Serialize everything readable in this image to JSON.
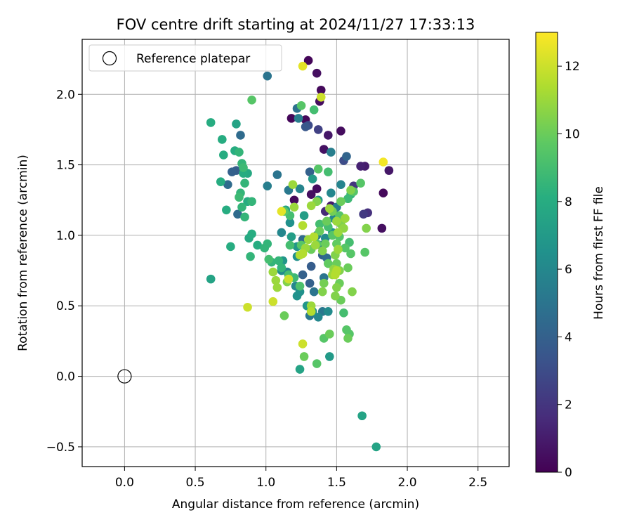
{
  "chart_data": {
    "type": "scatter",
    "title": "FOV centre drift starting at 2024/11/27 17:33:13",
    "xlabel": "Angular distance from reference (arcmin)",
    "ylabel": "Rotation from reference (arcmin)",
    "xlim": [
      -0.3,
      2.72
    ],
    "ylim": [
      -0.64,
      2.39
    ],
    "grid": true,
    "legend": {
      "position": "top-left",
      "entries": [
        "Reference platepar"
      ]
    },
    "x_ticks": [
      "0.0",
      "0.5",
      "1.0",
      "1.5",
      "2.0",
      "2.5"
    ],
    "y_ticks": [
      "−0.5",
      "0.0",
      "0.5",
      "1.0",
      "1.5",
      "2.0"
    ],
    "colorbar": {
      "label": "Hours from first FF file",
      "range": [
        0,
        13
      ],
      "ticks": [
        "0",
        "2",
        "4",
        "6",
        "8",
        "10",
        "12"
      ],
      "colormap": "viridis"
    },
    "reference_point": {
      "x": 0.0,
      "y": 0.0,
      "label": "Reference platepar"
    },
    "points": [
      [
        1.3,
        2.24,
        0.2
      ],
      [
        1.36,
        2.15,
        0.5
      ],
      [
        1.39,
        2.03,
        0.3
      ],
      [
        1.38,
        1.95,
        0.4
      ],
      [
        1.28,
        1.82,
        0.3
      ],
      [
        1.18,
        1.83,
        0.2
      ],
      [
        1.53,
        1.74,
        0.4
      ],
      [
        1.44,
        1.71,
        0.8
      ],
      [
        1.41,
        1.61,
        0.6
      ],
      [
        1.67,
        1.49,
        1.2
      ],
      [
        1.7,
        1.49,
        1.0
      ],
      [
        1.87,
        1.46,
        0.8
      ],
      [
        1.82,
        1.05,
        0.5
      ],
      [
        1.83,
        1.3,
        0.3
      ],
      [
        1.72,
        1.16,
        1.8
      ],
      [
        1.69,
        1.15,
        2.2
      ],
      [
        1.62,
        1.35,
        2.0
      ],
      [
        1.55,
        1.53,
        3.0
      ],
      [
        1.32,
        1.29,
        0.5
      ],
      [
        1.2,
        1.25,
        0.3
      ],
      [
        1.36,
        1.33,
        0.4
      ],
      [
        1.42,
        1.17,
        1.5
      ],
      [
        1.46,
        1.21,
        1.0
      ],
      [
        1.5,
        1.14,
        2.3
      ],
      [
        1.3,
        1.78,
        3.0
      ],
      [
        1.28,
        1.77,
        3.5
      ],
      [
        1.37,
        1.75,
        2.5
      ],
      [
        1.57,
        1.56,
        4.2
      ],
      [
        1.22,
        1.9,
        4.8
      ],
      [
        1.23,
        1.83,
        5.5
      ],
      [
        1.31,
        1.45,
        4.0
      ],
      [
        1.01,
        1.35,
        5.5
      ],
      [
        1.08,
        1.43,
        5.0
      ],
      [
        1.16,
        1.32,
        5.2
      ],
      [
        1.24,
        1.33,
        5.8
      ],
      [
        1.46,
        1.59,
        5.5
      ],
      [
        1.01,
        2.13,
        5.0
      ],
      [
        0.82,
        1.71,
        4.5
      ],
      [
        0.76,
        1.45,
        4.0
      ],
      [
        0.79,
        1.46,
        3.8
      ],
      [
        0.73,
        1.36,
        4.5
      ],
      [
        0.8,
        1.15,
        4.5
      ],
      [
        1.26,
        0.72,
        4.0
      ],
      [
        1.32,
        0.78,
        3.8
      ],
      [
        1.4,
        0.86,
        4.0
      ],
      [
        1.43,
        0.84,
        4.5
      ],
      [
        1.39,
        0.93,
        5.0
      ],
      [
        1.41,
        0.7,
        5.0
      ],
      [
        1.34,
        0.6,
        5.0
      ],
      [
        1.31,
        0.66,
        4.0
      ],
      [
        1.33,
        0.46,
        6.5
      ],
      [
        1.37,
        0.42,
        6.0
      ],
      [
        1.4,
        0.46,
        5.2
      ],
      [
        1.44,
        0.46,
        6.2
      ],
      [
        1.31,
        0.43,
        5.2
      ],
      [
        1.29,
        0.5,
        6.8
      ],
      [
        1.22,
        0.57,
        6.5
      ],
      [
        1.21,
        0.64,
        6.0
      ],
      [
        1.11,
        0.75,
        6.2
      ],
      [
        1.12,
        0.82,
        6.8
      ],
      [
        1.15,
        0.74,
        5.8
      ],
      [
        1.26,
        0.97,
        4.5
      ],
      [
        1.36,
        1.0,
        5.5
      ],
      [
        1.42,
        0.98,
        6.2
      ],
      [
        1.47,
        1.02,
        6.5
      ],
      [
        1.48,
        1.12,
        6.0
      ],
      [
        1.5,
        1.2,
        5.5
      ],
      [
        1.53,
        1.36,
        5.8
      ],
      [
        1.46,
        1.3,
        6.0
      ],
      [
        1.37,
        1.25,
        6.8
      ],
      [
        1.33,
        1.4,
        7.0
      ],
      [
        1.27,
        1.14,
        7.2
      ],
      [
        1.14,
        1.18,
        7.5
      ],
      [
        1.17,
        1.09,
        6.5
      ],
      [
        1.11,
        1.02,
        6.0
      ],
      [
        1.22,
        0.92,
        6.8
      ],
      [
        1.18,
        0.99,
        7.2
      ],
      [
        1.22,
        0.85,
        6.5
      ],
      [
        1.24,
        0.6,
        6.5
      ],
      [
        1.24,
        0.05,
        7.5
      ],
      [
        1.45,
        0.14,
        7.0
      ],
      [
        1.68,
        -0.28,
        7.5
      ],
      [
        1.78,
        -0.5,
        7.5
      ],
      [
        0.61,
        0.69,
        7.5
      ],
      [
        0.61,
        1.8,
        8.0
      ],
      [
        0.69,
        1.68,
        8.0
      ],
      [
        0.7,
        1.57,
        8.0
      ],
      [
        0.79,
        1.79,
        7.5
      ],
      [
        0.78,
        1.6,
        8.0
      ],
      [
        0.81,
        1.59,
        8.5
      ],
      [
        0.83,
        1.51,
        8.5
      ],
      [
        0.84,
        1.48,
        8.8
      ],
      [
        0.84,
        1.44,
        8.0
      ],
      [
        0.87,
        1.44,
        7.8
      ],
      [
        0.85,
        1.37,
        8.5
      ],
      [
        0.82,
        1.3,
        8.5
      ],
      [
        0.81,
        1.27,
        8.8
      ],
      [
        0.83,
        1.2,
        8.5
      ],
      [
        0.87,
        1.24,
        8.0
      ],
      [
        0.9,
        1.24,
        8.5
      ],
      [
        0.85,
        1.13,
        8.5
      ],
      [
        0.75,
        0.92,
        8.0
      ],
      [
        0.68,
        1.38,
        8.0
      ],
      [
        0.72,
        1.18,
        8.0
      ],
      [
        0.89,
        0.85,
        8.5
      ],
      [
        0.9,
        1.01,
        8.0
      ],
      [
        0.88,
        0.98,
        7.8
      ],
      [
        0.94,
        0.93,
        8.0
      ],
      [
        0.99,
        0.91,
        8.5
      ],
      [
        1.01,
        0.94,
        8.5
      ],
      [
        1.02,
        0.83,
        9.0
      ],
      [
        1.04,
        0.81,
        8.5
      ],
      [
        1.09,
        0.82,
        8.5
      ],
      [
        1.11,
        0.77,
        8.5
      ],
      [
        1.16,
        0.72,
        9.0
      ],
      [
        1.2,
        0.7,
        8.8
      ],
      [
        1.24,
        0.64,
        9.2
      ],
      [
        0.9,
        1.96,
        9.5
      ],
      [
        1.25,
        1.92,
        9.5
      ],
      [
        1.34,
        1.89,
        9.0
      ],
      [
        1.52,
        1.14,
        9.5
      ],
      [
        1.44,
        1.06,
        9.0
      ],
      [
        1.38,
        1.08,
        9.0
      ],
      [
        1.37,
        1.47,
        9.5
      ],
      [
        1.44,
        1.45,
        9.0
      ],
      [
        1.58,
        1.26,
        8.8
      ],
      [
        1.6,
        1.29,
        8.5
      ],
      [
        1.62,
        1.31,
        9.5
      ],
      [
        1.67,
        1.37,
        9.5
      ],
      [
        1.13,
        1.17,
        9.5
      ],
      [
        1.17,
        1.14,
        9.0
      ],
      [
        1.17,
        0.93,
        9.0
      ],
      [
        1.25,
        0.93,
        9.5
      ],
      [
        1.32,
        0.9,
        10.0
      ],
      [
        1.36,
        0.94,
        9.5
      ],
      [
        1.42,
        0.94,
        10.0
      ],
      [
        1.47,
        1.0,
        9.5
      ],
      [
        1.5,
        0.94,
        9.8
      ],
      [
        1.52,
        0.99,
        9.5
      ],
      [
        1.56,
        0.91,
        9.5
      ],
      [
        1.59,
        0.95,
        9.0
      ],
      [
        1.6,
        0.87,
        9.5
      ],
      [
        1.7,
        0.88,
        9.5
      ],
      [
        1.55,
        0.45,
        9.0
      ],
      [
        1.57,
        0.33,
        9.5
      ],
      [
        1.59,
        0.3,
        9.5
      ],
      [
        1.58,
        0.27,
        10.0
      ],
      [
        1.45,
        0.3,
        10.0
      ],
      [
        1.41,
        0.27,
        9.5
      ],
      [
        1.36,
        0.09,
        9.5
      ],
      [
        1.27,
        0.14,
        10.0
      ],
      [
        1.13,
        0.43,
        10.0
      ],
      [
        1.61,
        0.6,
        10.5
      ],
      [
        1.49,
        0.57,
        10.5
      ],
      [
        1.53,
        0.54,
        10.0
      ],
      [
        1.5,
        0.63,
        10.5
      ],
      [
        1.52,
        0.66,
        10.0
      ],
      [
        1.4,
        0.6,
        10.5
      ],
      [
        1.41,
        0.66,
        10.2
      ],
      [
        1.15,
        0.67,
        10.5
      ],
      [
        1.08,
        0.63,
        11.0
      ],
      [
        1.07,
        0.68,
        11.0
      ],
      [
        1.05,
        0.74,
        11.0
      ],
      [
        1.16,
        0.69,
        12.0
      ],
      [
        1.11,
        1.17,
        12.5
      ],
      [
        1.26,
        1.07,
        11.5
      ],
      [
        1.28,
        0.91,
        11.0
      ],
      [
        1.26,
        0.87,
        11.5
      ],
      [
        1.24,
        0.86,
        11.5
      ],
      [
        1.3,
        0.97,
        11.0
      ],
      [
        1.35,
        0.93,
        11.0
      ],
      [
        1.4,
        0.89,
        10.5
      ],
      [
        1.49,
        0.86,
        10.5
      ],
      [
        1.51,
        0.9,
        11.0
      ],
      [
        1.48,
        0.76,
        10.8
      ],
      [
        1.5,
        0.75,
        11.5
      ],
      [
        1.49,
        0.72,
        11.5
      ],
      [
        1.32,
        0.5,
        11.0
      ],
      [
        1.32,
        0.46,
        11.5
      ],
      [
        1.26,
        0.23,
        12.0
      ],
      [
        1.05,
        0.53,
        12.0
      ],
      [
        0.87,
        0.49,
        12.0
      ],
      [
        1.19,
        1.36,
        11.0
      ],
      [
        1.36,
        1.24,
        10.5
      ],
      [
        1.32,
        1.21,
        11.0
      ],
      [
        1.45,
        1.19,
        11.0
      ],
      [
        1.5,
        1.1,
        11.0
      ],
      [
        1.53,
        1.08,
        10.5
      ],
      [
        1.55,
        1.05,
        10.8
      ],
      [
        1.56,
        1.12,
        11.0
      ],
      [
        1.71,
        1.05,
        10.5
      ],
      [
        1.6,
        1.32,
        10.5
      ],
      [
        1.39,
        1.98,
        12.0
      ],
      [
        1.26,
        2.2,
        12.5
      ],
      [
        1.83,
        1.52,
        12.8
      ],
      [
        1.2,
        1.2,
        11.0
      ],
      [
        1.38,
        1.03,
        10.0
      ],
      [
        1.34,
        0.99,
        11.5
      ],
      [
        1.43,
        1.1,
        10.0
      ],
      [
        1.47,
        1.17,
        10.2
      ],
      [
        1.53,
        1.24,
        10.0
      ],
      [
        1.51,
        1.02,
        11.0
      ],
      [
        1.44,
        0.8,
        9.8
      ],
      [
        1.47,
        0.72,
        11.0
      ],
      [
        1.52,
        0.75,
        10.5
      ],
      [
        1.58,
        0.77,
        10.0
      ],
      [
        1.5,
        0.8,
        10.0
      ]
    ]
  }
}
